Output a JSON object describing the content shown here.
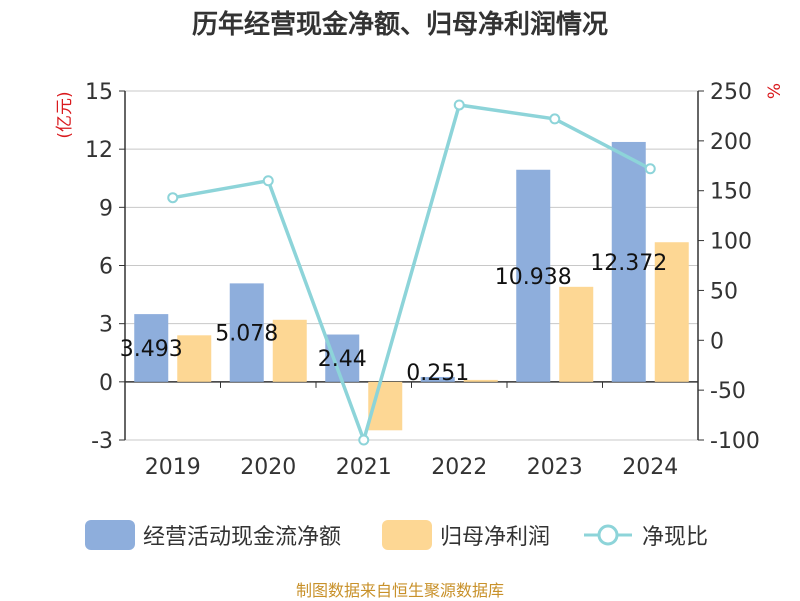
{
  "chart_data": {
    "type": "bar",
    "title": "历年经营现金净额、归母净利润情况",
    "categories": [
      "2019",
      "2020",
      "2021",
      "2022",
      "2023",
      "2024"
    ],
    "series": [
      {
        "name": "经营活动现金流净额",
        "type": "bar",
        "axis": "left",
        "color": "#8eaedc",
        "values": [
          3.493,
          5.078,
          2.44,
          0.251,
          10.938,
          12.372
        ]
      },
      {
        "name": "归母净利润",
        "type": "bar",
        "axis": "left",
        "color": "#fdd794",
        "values": [
          2.4,
          3.2,
          -2.5,
          0.1,
          4.9,
          7.2
        ]
      },
      {
        "name": "净现比",
        "type": "line",
        "axis": "right",
        "color": "#8dd4d9",
        "values": [
          143,
          160,
          -100,
          236,
          222,
          172
        ]
      }
    ],
    "data_labels": [
      "3.493",
      "5.078",
      "2.44",
      "0.251",
      "10.938",
      "12.372"
    ],
    "y_left": {
      "label": "(亿元)",
      "ylim": [
        -3,
        15
      ],
      "ticks": [
        "-3",
        "0",
        "3",
        "6",
        "9",
        "12",
        "15"
      ]
    },
    "y_right": {
      "label": "%",
      "ylim": [
        -100,
        250
      ],
      "ticks": [
        "-100",
        "-50",
        "0",
        "50",
        "100",
        "150",
        "200",
        "250"
      ]
    },
    "grid": true,
    "legend": "bottom",
    "source": "制图数据来自恒生聚源数据库"
  }
}
